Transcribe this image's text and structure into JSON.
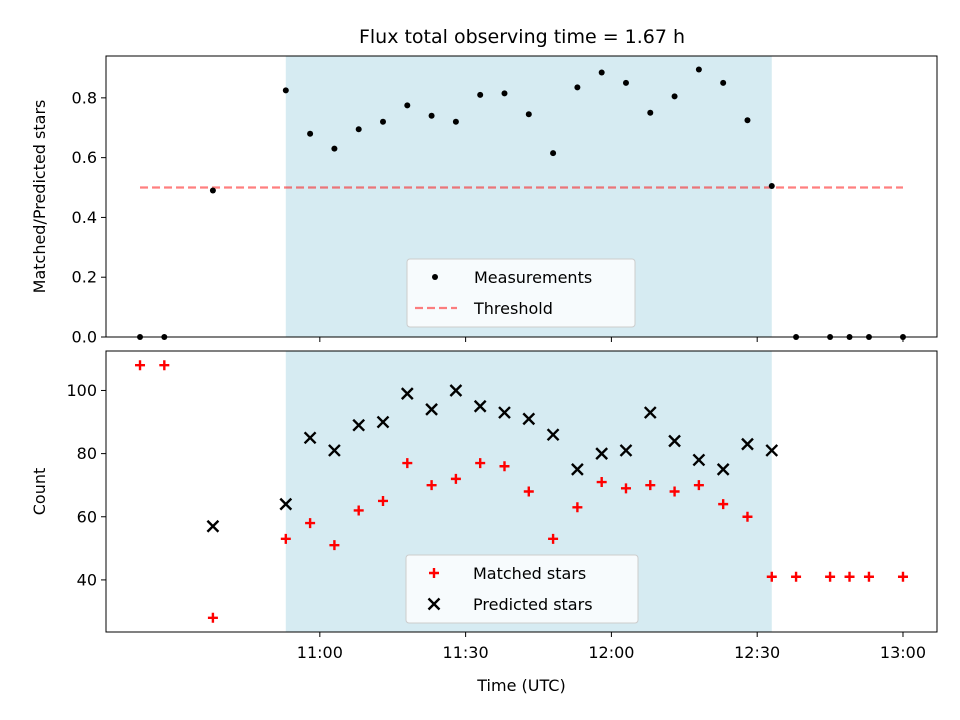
{
  "figure_title": "Flux total observing time = 1.67 h",
  "colors": {
    "shade": "#add8e6",
    "measurement": "#000000",
    "threshold": "#ff0000",
    "matched": "#ff0000",
    "predicted": "#000000"
  },
  "chart_data": [
    {
      "type": "scatter",
      "ylabel": "Matched/Predicted stars",
      "ylim": [
        0,
        0.94
      ],
      "yticks": [
        0.0,
        0.2,
        0.4,
        0.6,
        0.8
      ],
      "ytick_labels": [
        "0.0",
        "0.2",
        "0.4",
        "0.6",
        "0.8"
      ],
      "xlim": [
        "10:16",
        "13:07"
      ],
      "xticks": [
        "11:00",
        "11:30",
        "12:00",
        "12:30",
        "13:00"
      ],
      "shaded_span": [
        "10:53",
        "12:33"
      ],
      "threshold": {
        "value": 0.5,
        "x_range": [
          "10:23",
          "13:00"
        ]
      },
      "legend": {
        "position": "lower center",
        "entries": [
          "Measurements",
          "Threshold"
        ]
      },
      "series": [
        {
          "name": "Measurements",
          "marker": "dot",
          "x": [
            "10:23",
            "10:28",
            "10:38",
            "10:53",
            "10:58",
            "11:03",
            "11:08",
            "11:13",
            "11:18",
            "11:23",
            "11:28",
            "11:33",
            "11:38",
            "11:43",
            "11:48",
            "11:53",
            "11:58",
            "12:03",
            "12:08",
            "12:13",
            "12:18",
            "12:23",
            "12:28",
            "12:33",
            "12:38",
            "12:45",
            "12:49",
            "12:53",
            "13:00"
          ],
          "y": [
            0.0,
            0.0,
            0.49,
            0.825,
            0.68,
            0.63,
            0.695,
            0.72,
            0.775,
            0.74,
            0.72,
            0.81,
            0.815,
            0.745,
            0.615,
            0.835,
            0.885,
            0.85,
            0.75,
            0.805,
            0.895,
            0.85,
            0.725,
            0.505,
            0.0,
            0.0,
            0.0,
            0.0,
            0.0
          ]
        }
      ]
    },
    {
      "type": "scatter",
      "ylabel": "Count",
      "xlabel": "Time (UTC)",
      "ylim": [
        23.5,
        112.5
      ],
      "yticks": [
        40,
        60,
        80,
        100
      ],
      "ytick_labels": [
        "40",
        "60",
        "80",
        "100"
      ],
      "xlim": [
        "10:16",
        "13:07"
      ],
      "xticks": [
        "11:00",
        "11:30",
        "12:00",
        "12:30",
        "13:00"
      ],
      "xtick_labels": [
        "11:00",
        "11:30",
        "12:00",
        "12:30",
        "13:00"
      ],
      "shaded_span": [
        "10:53",
        "12:33"
      ],
      "legend": {
        "position": "lower center",
        "entries": [
          "Matched stars",
          "Predicted stars"
        ]
      },
      "series": [
        {
          "name": "Matched stars",
          "marker": "plus",
          "x": [
            "10:23",
            "10:28",
            "10:38",
            "10:53",
            "10:58",
            "11:03",
            "11:08",
            "11:13",
            "11:18",
            "11:23",
            "11:28",
            "11:33",
            "11:38",
            "11:43",
            "11:48",
            "11:53",
            "11:58",
            "12:03",
            "12:08",
            "12:13",
            "12:18",
            "12:23",
            "12:28",
            "12:33",
            "12:38",
            "12:45",
            "12:49",
            "12:53",
            "13:00"
          ],
          "y": [
            108,
            108,
            28,
            53,
            58,
            51,
            62,
            65,
            77,
            70,
            72,
            77,
            76,
            68,
            53,
            63,
            71,
            69,
            70,
            68,
            70,
            64,
            60,
            41,
            41,
            41,
            41,
            41,
            41
          ]
        },
        {
          "name": "Predicted stars",
          "marker": "x",
          "x": [
            "10:38",
            "10:53",
            "10:58",
            "11:03",
            "11:08",
            "11:13",
            "11:18",
            "11:23",
            "11:28",
            "11:33",
            "11:38",
            "11:43",
            "11:48",
            "11:53",
            "11:58",
            "12:03",
            "12:08",
            "12:13",
            "12:18",
            "12:23",
            "12:28",
            "12:33"
          ],
          "y": [
            57,
            64,
            85,
            81,
            89,
            90,
            99,
            94,
            100,
            95,
            93,
            91,
            86,
            75,
            80,
            81,
            93,
            84,
            78,
            75,
            83,
            81
          ]
        }
      ]
    }
  ]
}
